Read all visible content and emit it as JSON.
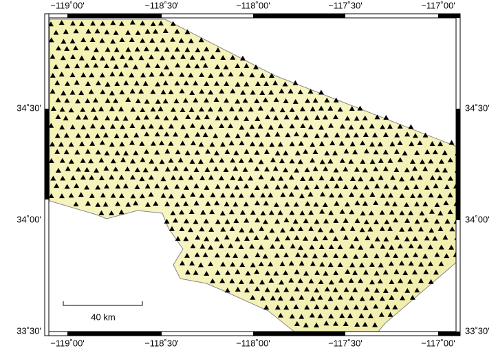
{
  "map": {
    "lon_ticks": [
      "−119˚00'",
      "−118˚30'",
      "−118˚00'",
      "−117˚30'",
      "−117˚00'"
    ],
    "lat_ticks": [
      "34˚30'",
      "34˚00'",
      "33˚30'"
    ],
    "scale_bar": "40 km"
  }
}
